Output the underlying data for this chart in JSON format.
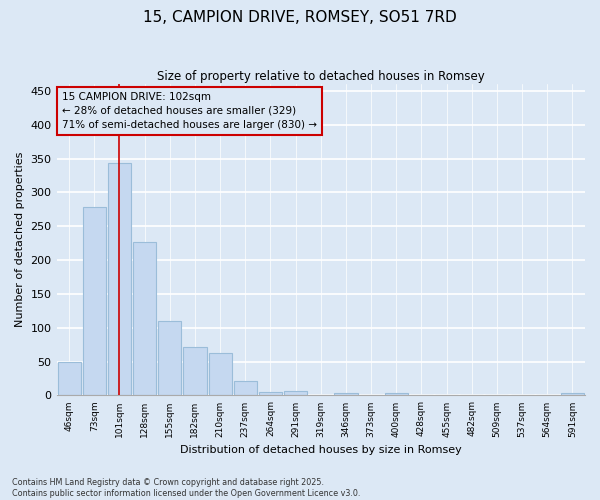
{
  "title": "15, CAMPION DRIVE, ROMSEY, SO51 7RD",
  "subtitle": "Size of property relative to detached houses in Romsey",
  "xlabel": "Distribution of detached houses by size in Romsey",
  "ylabel": "Number of detached properties",
  "categories": [
    "46sqm",
    "73sqm",
    "101sqm",
    "128sqm",
    "155sqm",
    "182sqm",
    "210sqm",
    "237sqm",
    "264sqm",
    "291sqm",
    "319sqm",
    "346sqm",
    "373sqm",
    "400sqm",
    "428sqm",
    "455sqm",
    "482sqm",
    "509sqm",
    "537sqm",
    "564sqm",
    "591sqm"
  ],
  "values": [
    50,
    278,
    343,
    227,
    110,
    72,
    63,
    22,
    5,
    7,
    0,
    4,
    0,
    3,
    0,
    0,
    0,
    0,
    0,
    0,
    4
  ],
  "bar_color": "#c5d8f0",
  "bar_edge_color": "#9bbdd9",
  "highlight_bar_index": 2,
  "highlight_line_color": "#cc0000",
  "annotation_text": "15 CAMPION DRIVE: 102sqm\n← 28% of detached houses are smaller (329)\n71% of semi-detached houses are larger (830) →",
  "annotation_box_color": "#cc0000",
  "annotation_text_color": "#000000",
  "ylim": [
    0,
    460
  ],
  "yticks": [
    0,
    50,
    100,
    150,
    200,
    250,
    300,
    350,
    400,
    450
  ],
  "background_color": "#dce8f5",
  "plot_bg_color": "#dce8f5",
  "grid_color": "#ffffff",
  "footer_line1": "Contains HM Land Registry data © Crown copyright and database right 2025.",
  "footer_line2": "Contains public sector information licensed under the Open Government Licence v3.0."
}
